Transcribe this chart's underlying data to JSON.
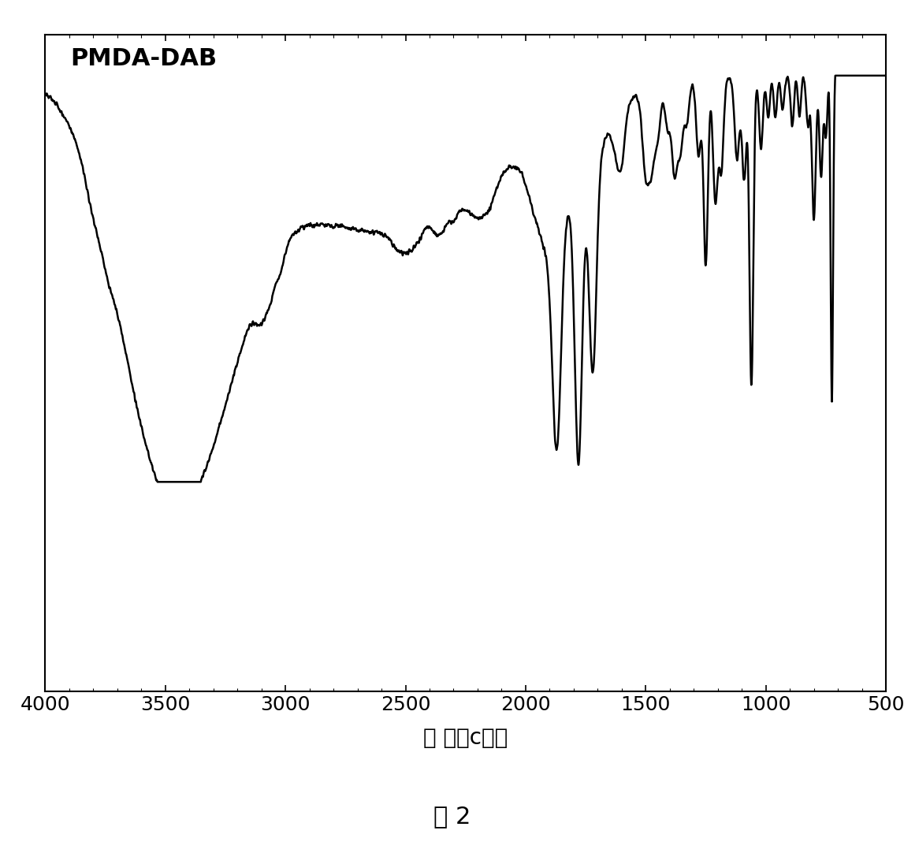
{
  "title": "PMDA-DAB",
  "xlabel": "波 数（c㎡）",
  "figure_caption": "图 2",
  "xmin": 500,
  "xmax": 4000,
  "xticks": [
    4000,
    3500,
    3000,
    2500,
    2000,
    1500,
    1000,
    500
  ],
  "background_color": "#ffffff",
  "line_color": "#000000",
  "line_width": 1.8,
  "title_fontsize": 22,
  "xlabel_fontsize": 20,
  "caption_fontsize": 22,
  "tick_fontsize": 18
}
